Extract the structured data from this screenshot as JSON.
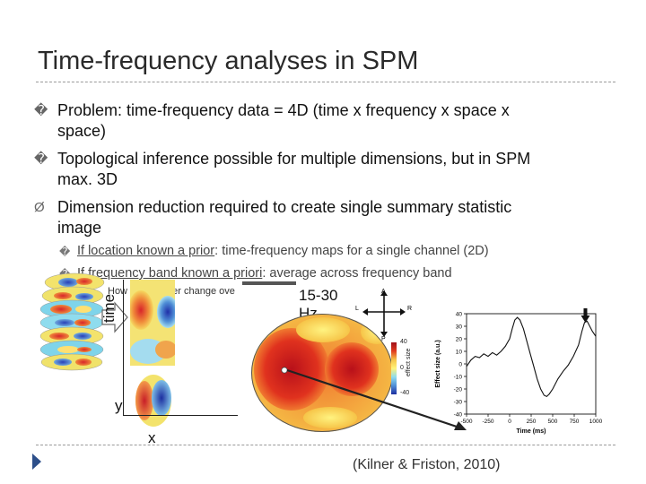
{
  "slide": {
    "title": "Time-frequency analyses in SPM",
    "bullets": [
      {
        "marker": "�",
        "lines": [
          "Problem: time-frequency data = 4D (time x frequency x space x",
          "space)"
        ]
      },
      {
        "marker": "�",
        "lines": [
          "Topological inference possible for multiple dimensions, but in SPM",
          "max. 3D"
        ]
      },
      {
        "marker": "Ø",
        "lines": [
          "Dimension reduction required to create single summary statistic",
          "image"
        ]
      }
    ],
    "sub_bullets": [
      {
        "marker": "�",
        "underlined": "If location known a prior",
        "rest": ": time-frequency maps for a single channel (2D)"
      },
      {
        "marker": "�",
        "underlined": "If frequency band known a priori",
        "rest": ": average across frequency band"
      }
    ],
    "overlay_text": "How does power change ove",
    "band_label_line1": "15-30",
    "band_label_line2": "Hz",
    "axis_time": "time",
    "axis_y": "y",
    "axis_x": "x",
    "citation": "(Kilner & Friston, 2010)"
  },
  "compass": {
    "a": "A",
    "p": "P",
    "l": "L",
    "r": "R"
  },
  "colorbar": {
    "label": "effect size",
    "ticks": [
      "40",
      "0",
      "-40"
    ]
  },
  "waveform": {
    "ylabel": "Effect size (a.u.)",
    "xlabel": "Time (ms)",
    "yticks": [
      "40",
      "30",
      "20",
      "10",
      "0",
      "-10",
      "-20",
      "-30",
      "-40"
    ],
    "xticks": [
      "-500",
      "-250",
      "0",
      "250",
      "500",
      "750",
      "1000"
    ],
    "ylim": [
      -40,
      40
    ],
    "xlim": [
      -500,
      1000
    ],
    "points": [
      [
        -500,
        -2
      ],
      [
        -450,
        3
      ],
      [
        -400,
        6
      ],
      [
        -350,
        5
      ],
      [
        -300,
        8
      ],
      [
        -250,
        6
      ],
      [
        -200,
        9
      ],
      [
        -150,
        7
      ],
      [
        -100,
        10
      ],
      [
        -50,
        14
      ],
      [
        0,
        20
      ],
      [
        30,
        28
      ],
      [
        60,
        35
      ],
      [
        90,
        37
      ],
      [
        120,
        35
      ],
      [
        160,
        28
      ],
      [
        200,
        18
      ],
      [
        240,
        8
      ],
      [
        280,
        -2
      ],
      [
        320,
        -12
      ],
      [
        360,
        -20
      ],
      [
        400,
        -25
      ],
      [
        430,
        -26
      ],
      [
        460,
        -24
      ],
      [
        500,
        -20
      ],
      [
        560,
        -12
      ],
      [
        620,
        -6
      ],
      [
        680,
        -1
      ],
      [
        740,
        6
      ],
      [
        800,
        15
      ],
      [
        840,
        26
      ],
      [
        870,
        33
      ],
      [
        900,
        34
      ],
      [
        930,
        30
      ],
      [
        960,
        26
      ],
      [
        1000,
        22
      ]
    ],
    "arrow_time": 880
  },
  "colors": {
    "accent_arrow": "#2d4f8a",
    "dashed_line": "#9a9a9a"
  }
}
